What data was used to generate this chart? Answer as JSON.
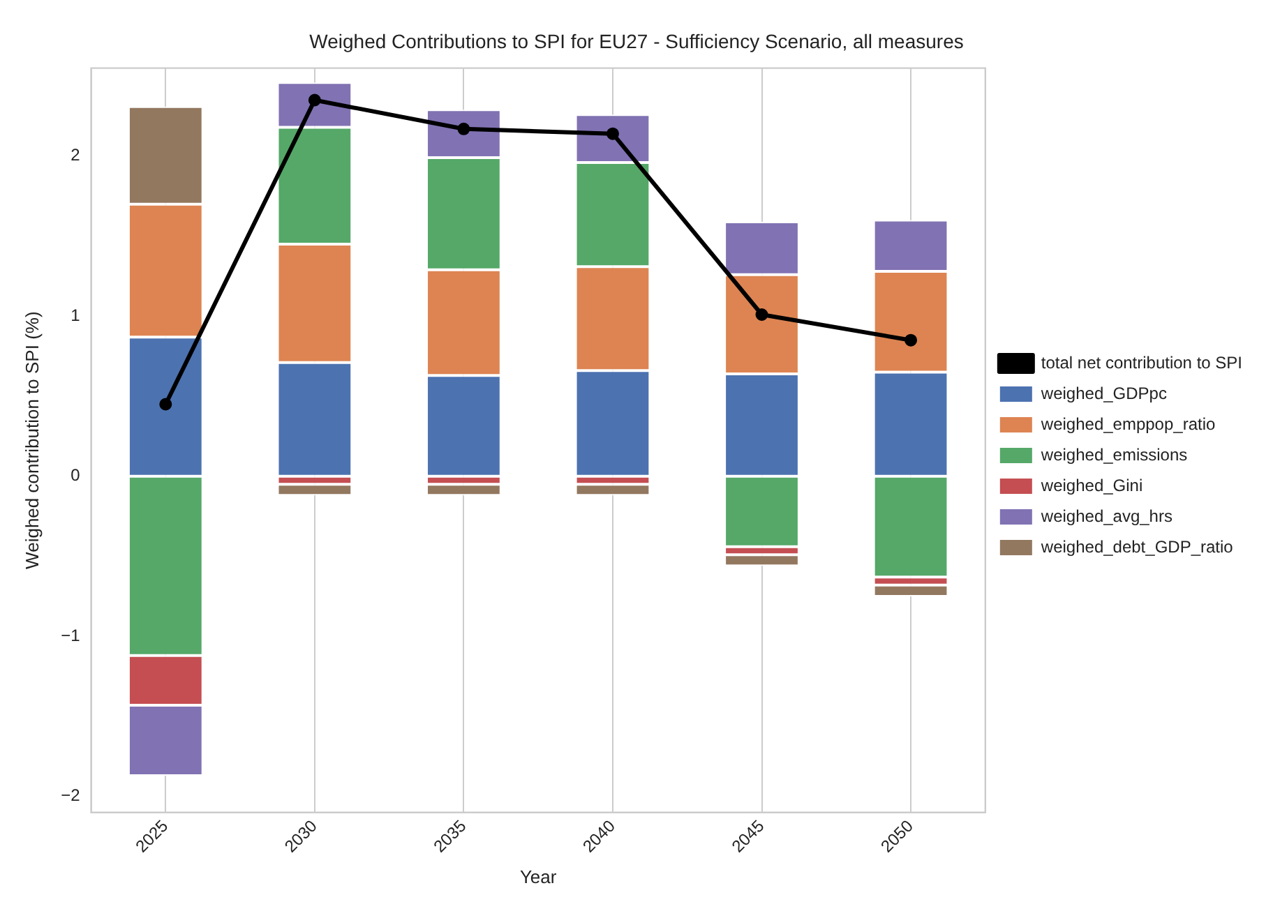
{
  "chart_data": {
    "type": "bar",
    "stacked": true,
    "title": "Weighed Contributions to SPI for EU27 - Sufficiency Scenario, all measures",
    "xlabel": "Year",
    "ylabel": "Weighed contribution to SPI (%)",
    "categories": [
      "2025",
      "2030",
      "2035",
      "2040",
      "2045",
      "2050"
    ],
    "series": [
      {
        "name": "total net contribution to SPI",
        "type": "line",
        "color": "#000000",
        "marker": "circle",
        "values": [
          0.45,
          2.35,
          2.17,
          2.14,
          1.01,
          0.85
        ]
      },
      {
        "name": "weighed_GDPpc",
        "color": "#4c72b0",
        "values": [
          0.87,
          0.71,
          0.63,
          0.66,
          0.64,
          0.65
        ]
      },
      {
        "name": "weighed_emppop_ratio",
        "color": "#dd8452",
        "values": [
          0.83,
          0.74,
          0.66,
          0.65,
          0.62,
          0.63
        ]
      },
      {
        "name": "weighed_emissions",
        "color": "#55a868",
        "values": [
          -1.12,
          0.73,
          0.7,
          0.65,
          -0.44,
          -0.63
        ]
      },
      {
        "name": "weighed_Gini",
        "color": "#c44e52",
        "values": [
          -0.31,
          -0.05,
          -0.05,
          -0.05,
          -0.05,
          -0.05
        ]
      },
      {
        "name": "weighed_avg_hrs",
        "color": "#8172b3",
        "values": [
          -0.44,
          0.28,
          0.3,
          0.3,
          0.33,
          0.32
        ]
      },
      {
        "name": "weighed_debt_GDP_ratio",
        "color": "#937860",
        "values": [
          0.61,
          -0.07,
          -0.07,
          -0.07,
          -0.07,
          -0.07
        ]
      }
    ],
    "ylim": [
      -2.1,
      2.55
    ],
    "yticks": [
      {
        "value": -2,
        "label": "−2"
      },
      {
        "value": -1,
        "label": "−1"
      },
      0,
      1,
      2
    ],
    "grid": "x",
    "legend": "right"
  }
}
